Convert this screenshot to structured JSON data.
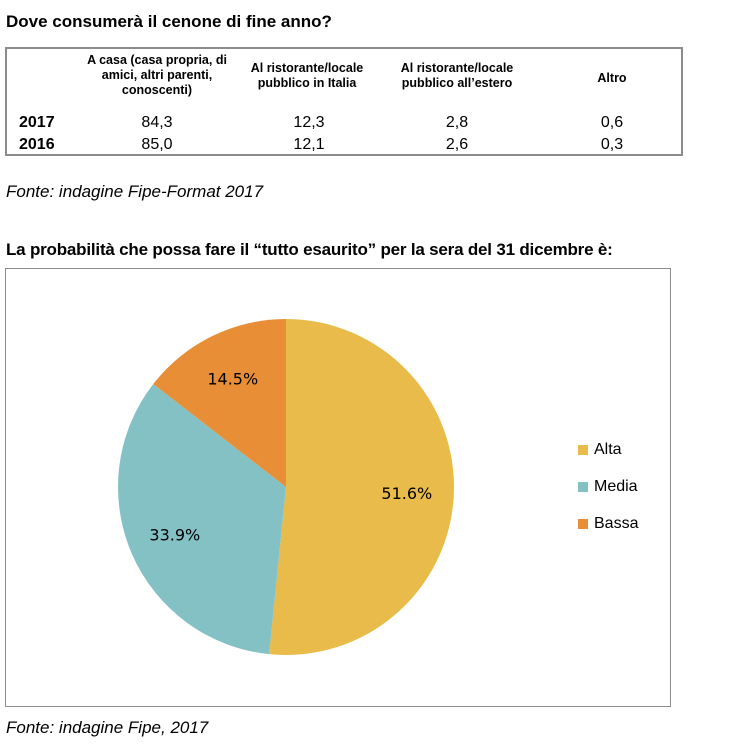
{
  "table": {
    "title": "Dove consumerà il cenone di fine anno?",
    "headers": [
      "A casa (casa propria, di amici, altri parenti, conoscenti)",
      "Al ristorante/locale pubblico  in Italia",
      "Al ristorante/locale pubblico  all’estero",
      "Altro"
    ],
    "rows": [
      {
        "year": "2017",
        "values": [
          "84,3",
          "12,3",
          "2,8",
          "0,6"
        ]
      },
      {
        "year": "2016",
        "values": [
          "85,0",
          "12,1",
          "2,6",
          "0,3"
        ]
      }
    ],
    "source": "Fonte: indagine Fipe-Format 2017"
  },
  "chart_data": {
    "type": "pie",
    "title": "La probabilità che possa fare il “tutto esaurito” per la sera del 31 dicembre è:",
    "categories": [
      "Alta",
      "Media",
      "Bassa"
    ],
    "values": [
      51.6,
      33.9,
      14.5
    ],
    "labels": [
      "51.6%",
      "33.9%",
      "14.5%"
    ],
    "colors": [
      "#E8BB4A",
      "#84C1C5",
      "#E78E36"
    ],
    "legend": "right",
    "source": "Fonte: indagine Fipe, 2017"
  }
}
